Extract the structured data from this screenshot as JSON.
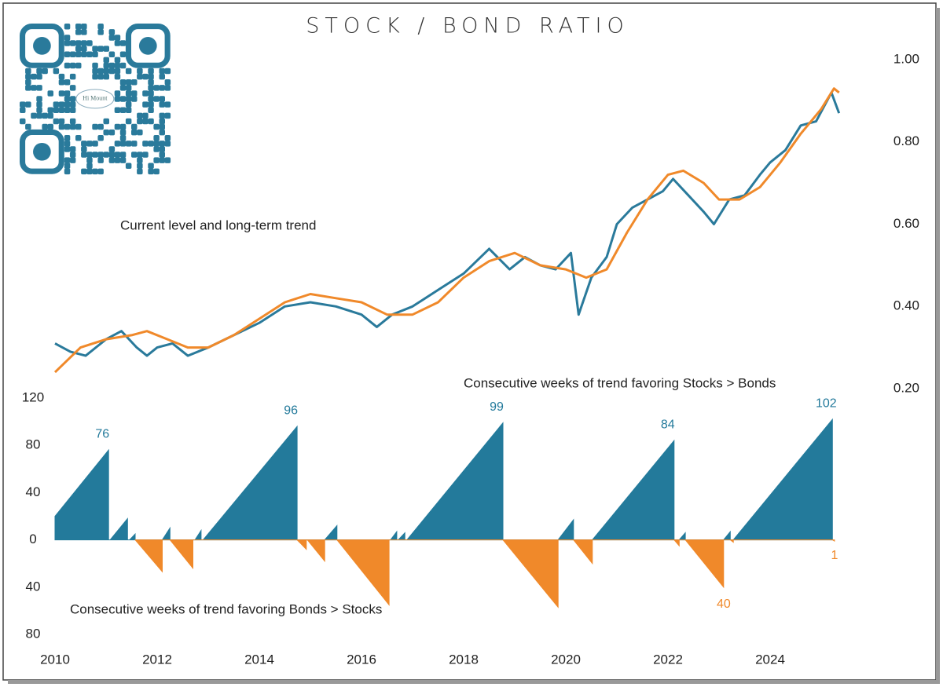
{
  "logo_text": "Hi Mount",
  "chart_data": [
    {
      "type": "line",
      "title": "STOCK / BOND RATIO",
      "annotation": "Current level and long-term trend",
      "xlim": [
        2010,
        2026
      ],
      "ylim": [
        0.2,
        1.0
      ],
      "yticks": [
        {
          "value": 1.0,
          "label": "1.00"
        },
        {
          "value": 0.8,
          "label": "0.80"
        },
        {
          "value": 0.6,
          "label": "0.60"
        },
        {
          "value": 0.4,
          "label": "0.40"
        },
        {
          "value": 0.2,
          "label": "0.20"
        }
      ],
      "series": [
        {
          "color": "#2a7a9b",
          "x": [
            2010.0,
            2010.3,
            2010.6,
            2011.0,
            2011.3,
            2011.6,
            2011.8,
            2012.0,
            2012.3,
            2012.6,
            2013.0,
            2013.5,
            2014.0,
            2014.5,
            2015.0,
            2015.5,
            2016.0,
            2016.3,
            2016.6,
            2017.0,
            2017.5,
            2018.0,
            2018.5,
            2018.9,
            2019.2,
            2019.5,
            2019.8,
            2020.1,
            2020.25,
            2020.5,
            2020.8,
            2021.0,
            2021.3,
            2021.6,
            2021.9,
            2022.1,
            2022.4,
            2022.7,
            2022.9,
            2023.2,
            2023.5,
            2023.8,
            2024.0,
            2024.3,
            2024.6,
            2024.9,
            2025.2,
            2025.35
          ],
          "values": [
            0.31,
            0.29,
            0.28,
            0.32,
            0.34,
            0.3,
            0.28,
            0.3,
            0.31,
            0.28,
            0.3,
            0.33,
            0.36,
            0.4,
            0.41,
            0.4,
            0.38,
            0.35,
            0.38,
            0.4,
            0.44,
            0.48,
            0.54,
            0.49,
            0.52,
            0.5,
            0.49,
            0.53,
            0.38,
            0.47,
            0.52,
            0.6,
            0.64,
            0.66,
            0.68,
            0.71,
            0.67,
            0.63,
            0.6,
            0.66,
            0.67,
            0.72,
            0.75,
            0.78,
            0.84,
            0.85,
            0.92,
            0.87
          ]
        },
        {
          "color": "#f0892a",
          "x": [
            2010.0,
            2010.5,
            2011.0,
            2011.5,
            2011.8,
            2012.2,
            2012.6,
            2013.0,
            2013.5,
            2014.0,
            2014.5,
            2015.0,
            2015.5,
            2016.0,
            2016.5,
            2017.0,
            2017.5,
            2018.0,
            2018.5,
            2019.0,
            2019.5,
            2020.0,
            2020.4,
            2020.8,
            2021.2,
            2021.6,
            2022.0,
            2022.3,
            2022.7,
            2023.0,
            2023.4,
            2023.8,
            2024.2,
            2024.6,
            2025.0,
            2025.25,
            2025.35
          ],
          "values": [
            0.24,
            0.3,
            0.32,
            0.33,
            0.34,
            0.32,
            0.3,
            0.3,
            0.33,
            0.37,
            0.41,
            0.43,
            0.42,
            0.41,
            0.38,
            0.38,
            0.41,
            0.47,
            0.51,
            0.53,
            0.5,
            0.49,
            0.47,
            0.49,
            0.58,
            0.66,
            0.72,
            0.73,
            0.7,
            0.66,
            0.66,
            0.69,
            0.75,
            0.82,
            0.88,
            0.93,
            0.92
          ]
        }
      ]
    },
    {
      "type": "area",
      "annotations": [
        "Consecutive weeks of trend favoring Stocks > Bonds",
        "Consecutive weeks of trend favoring Bonds > Stocks"
      ],
      "xlim": [
        2010,
        2026
      ],
      "xticks": [
        2010,
        2012,
        2014,
        2016,
        2018,
        2020,
        2022,
        2024
      ],
      "ylim": [
        -80,
        120
      ],
      "yticks": [
        120,
        80,
        40,
        0,
        {
          "value": -40,
          "label": "40"
        },
        {
          "value": -80,
          "label": "80"
        }
      ],
      "series": [
        {
          "color": "#237a9b",
          "x": [
            2010.0,
            2011.05,
            2011.05,
            2011.08,
            2011.42,
            2011.42,
            2011.46,
            2011.57,
            2011.57,
            2012.1,
            2012.25,
            2012.25,
            2012.74,
            2012.86,
            2012.86,
            2012.9,
            2014.74,
            2014.74,
            2015.28,
            2015.52,
            2015.52,
            2016.57,
            2016.69,
            2016.69,
            2016.72,
            2016.85,
            2016.85,
            2016.89,
            2018.77,
            2018.77,
            2019.85,
            2020.15,
            2020.15,
            2020.52,
            2022.12,
            2022.12,
            2022.22,
            2022.34,
            2022.34,
            2023.09,
            2023.22,
            2023.22,
            2023.28,
            2025.22,
            2025.22
          ],
          "values": [
            20,
            76,
            0,
            0,
            18,
            0,
            0,
            5,
            0,
            0,
            10,
            0,
            0,
            8,
            0,
            0,
            96,
            0,
            0,
            12,
            0,
            0,
            7,
            0,
            0,
            6,
            0,
            0,
            99,
            0,
            0,
            17,
            0,
            0,
            84,
            0,
            0,
            6,
            0,
            0,
            7,
            0,
            0,
            102,
            0
          ],
          "value_labels": [
            null,
            "76",
            null,
            null,
            null,
            null,
            null,
            null,
            null,
            null,
            null,
            null,
            null,
            null,
            null,
            null,
            "96",
            null,
            null,
            null,
            null,
            null,
            null,
            null,
            null,
            null,
            null,
            null,
            "99",
            null,
            null,
            null,
            null,
            null,
            "84",
            null,
            null,
            null,
            null,
            null,
            null,
            null,
            null,
            "102",
            null
          ]
        },
        {
          "color": "#f0892a",
          "x": [
            2011.57,
            2012.1,
            2012.1,
            2012.25,
            2012.7,
            2012.7,
            2014.74,
            2014.92,
            2014.92,
            2014.94,
            2015.28,
            2015.28,
            2015.52,
            2016.54,
            2016.54,
            2018.77,
            2019.85,
            2019.85,
            2020.15,
            2020.52,
            2020.52,
            2022.12,
            2022.22,
            2022.22,
            2022.34,
            2023.09,
            2023.09,
            2023.22,
            2023.28,
            2023.28,
            2025.22,
            2025.26,
            2025.26
          ],
          "values": [
            0,
            -27,
            0,
            0,
            -24,
            0,
            0,
            -8,
            0,
            0,
            -18,
            0,
            0,
            -55,
            0,
            0,
            -57,
            0,
            0,
            -20,
            0,
            0,
            -5,
            0,
            0,
            -40,
            0,
            0,
            -2,
            0,
            0,
            -1,
            0
          ],
          "value_labels": [
            null,
            null,
            null,
            null,
            null,
            null,
            null,
            null,
            null,
            null,
            null,
            null,
            null,
            null,
            null,
            null,
            null,
            null,
            null,
            null,
            null,
            null,
            null,
            null,
            null,
            "40",
            null,
            null,
            null,
            null,
            null,
            "1",
            null
          ]
        }
      ]
    }
  ]
}
